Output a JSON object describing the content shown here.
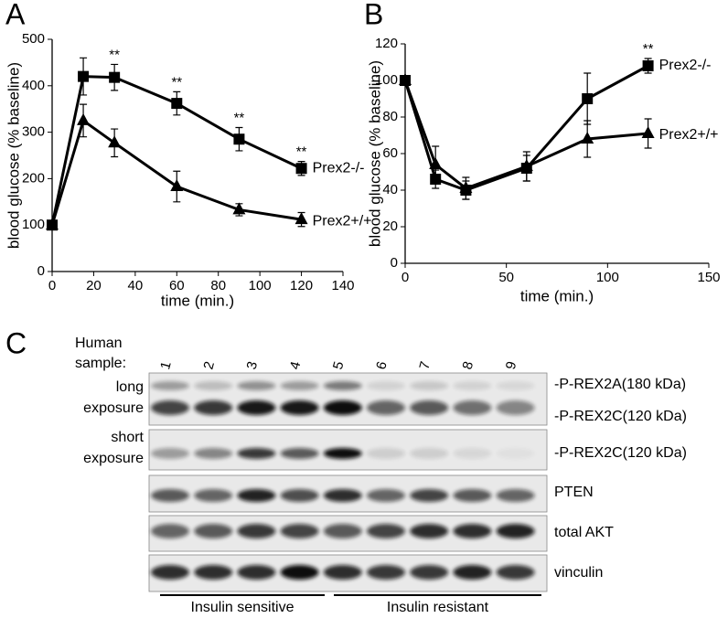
{
  "chart_data": [
    {
      "type": "line",
      "panel_label": "A",
      "x_label": "time (min.)",
      "y_label": "blood glucose (% baseline)",
      "x": [
        0,
        15,
        30,
        60,
        90,
        120
      ],
      "xlim": [
        0,
        140
      ],
      "xticks": [
        0,
        20,
        40,
        60,
        80,
        100,
        120,
        140
      ],
      "ylim": [
        0,
        500
      ],
      "yticks": [
        0,
        100,
        200,
        300,
        400,
        500
      ],
      "series": [
        {
          "name": "Prex2-/-",
          "color": "#000000",
          "marker": "square",
          "values": [
            100,
            420,
            418,
            362,
            285,
            222
          ],
          "errors": [
            0,
            40,
            28,
            25,
            25,
            15
          ]
        },
        {
          "name": "Prex2+/+",
          "color": "#000000",
          "marker": "triangle",
          "values": [
            100,
            325,
            277,
            183,
            133,
            112
          ],
          "errors": [
            0,
            35,
            30,
            33,
            13,
            15
          ]
        }
      ],
      "annotations": [
        {
          "text": "**",
          "x": 30
        },
        {
          "text": "**",
          "x": 60
        },
        {
          "text": "**",
          "x": 90
        },
        {
          "text": "**",
          "x": 120
        }
      ]
    },
    {
      "type": "line",
      "panel_label": "B",
      "x_label": "time (min.)",
      "y_label": "blood glucose (% baseline)",
      "x": [
        0,
        15,
        30,
        60,
        90,
        120
      ],
      "xlim": [
        0,
        150
      ],
      "xticks": [
        0,
        50,
        100,
        150
      ],
      "ylim": [
        0,
        120
      ],
      "yticks": [
        0,
        20,
        40,
        60,
        80,
        100,
        120
      ],
      "series": [
        {
          "name": "Prex2-/-",
          "color": "#000000",
          "marker": "square",
          "values": [
            100,
            46,
            40,
            52,
            90,
            108
          ],
          "errors": [
            0,
            5,
            5,
            7,
            14,
            4
          ]
        },
        {
          "name": "Prex2+/+",
          "color": "#000000",
          "marker": "triangle",
          "values": [
            100,
            54,
            41,
            53,
            68,
            71
          ],
          "errors": [
            0,
            10,
            6,
            8,
            10,
            8
          ]
        }
      ],
      "annotations": [
        {
          "text": "**",
          "x": 120
        }
      ]
    }
  ],
  "blot": {
    "panel_label": "C",
    "sample_header": [
      "Human",
      "sample:"
    ],
    "samples": [
      "1",
      "2",
      "3",
      "4",
      "5",
      "6",
      "7",
      "8",
      "9"
    ],
    "rows": [
      {
        "left": [
          "long",
          "exposure"
        ],
        "right": [
          "-P-REX2A(180 kDa)",
          "-P-REX2C(120 kDa)"
        ]
      },
      {
        "left": [
          "short",
          "exposure"
        ],
        "right": [
          "-P-REX2C(120 kDa)"
        ]
      },
      {
        "left": [],
        "right": [
          "PTEN"
        ]
      },
      {
        "left": [],
        "right": [
          "total AKT"
        ]
      },
      {
        "left": [],
        "right": [
          "vinculin"
        ]
      }
    ],
    "groups": [
      "Insulin sensitive",
      "Insulin resistant"
    ]
  }
}
